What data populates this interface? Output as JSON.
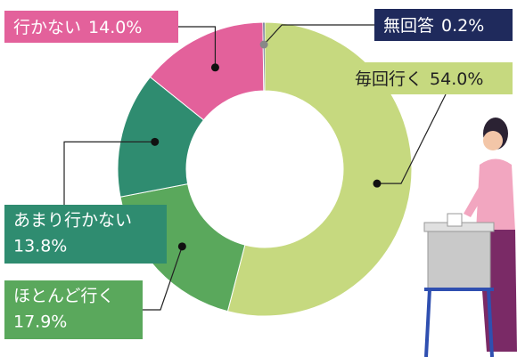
{
  "chart_data": {
    "type": "donut",
    "categories": [
      "毎回行く",
      "ほとんど行く",
      "あまり行かない",
      "行かない",
      "無回答"
    ],
    "values": [
      54.0,
      17.9,
      13.8,
      14.0,
      0.2
    ],
    "value_labels": [
      "54.0%",
      "17.9%",
      "13.8%",
      "14.0%",
      "0.2%"
    ],
    "colors": [
      "#c6d97f",
      "#5aa85c",
      "#2f8c70",
      "#e3619b",
      "#1f2a5c"
    ]
  }
}
